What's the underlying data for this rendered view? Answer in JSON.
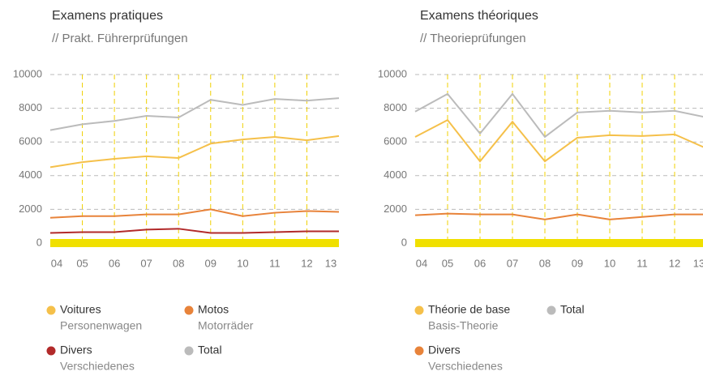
{
  "chart_data": [
    {
      "type": "line",
      "title": "Examens pratiques",
      "subtitle": "// Prakt. Führerprüfungen",
      "categories": [
        "04",
        "05",
        "06",
        "07",
        "08",
        "09",
        "10",
        "11",
        "12",
        "13"
      ],
      "ylim": [
        0,
        10000
      ],
      "yticks": [
        0,
        2000,
        4000,
        6000,
        8000,
        10000
      ],
      "grid": true,
      "series": [
        {
          "name": "Voitures",
          "name_de": "Personenwagen",
          "color": "#f5c04a",
          "values": [
            4500,
            4800,
            5000,
            5150,
            5050,
            5900,
            6150,
            6300,
            6100,
            6350
          ]
        },
        {
          "name": "Motos",
          "name_de": "Motorräder",
          "color": "#e8833a",
          "values": [
            1500,
            1600,
            1600,
            1700,
            1700,
            2000,
            1600,
            1800,
            1900,
            1850
          ]
        },
        {
          "name": "Divers",
          "name_de": "Verschiedenes",
          "color": "#b22a2a",
          "values": [
            600,
            650,
            650,
            800,
            850,
            600,
            600,
            650,
            700,
            700
          ]
        },
        {
          "name": "Total",
          "color": "#bbbbbb",
          "values": [
            6700,
            7050,
            7250,
            7550,
            7450,
            8500,
            8200,
            8550,
            8450,
            8600
          ]
        }
      ]
    },
    {
      "type": "line",
      "title": "Examens théoriques",
      "subtitle": "// Theorieprüfungen",
      "categories": [
        "04",
        "05",
        "06",
        "07",
        "08",
        "09",
        "10",
        "11",
        "12",
        "13"
      ],
      "ylim": [
        0,
        10000
      ],
      "yticks": [
        0,
        2000,
        4000,
        6000,
        8000,
        10000
      ],
      "grid": true,
      "series": [
        {
          "name": "Théorie de base",
          "name_de": "Basis-Theorie",
          "color": "#f5c04a",
          "values": [
            6300,
            7300,
            4850,
            7200,
            4850,
            6250,
            6400,
            6350,
            6450,
            5600
          ]
        },
        {
          "name": "Total",
          "color": "#bbbbbb",
          "values": [
            7800,
            8850,
            6500,
            8850,
            6300,
            7750,
            7850,
            7750,
            7850,
            7450
          ]
        },
        {
          "name": "Divers",
          "name_de": "Verschiedenes",
          "color": "#e8833a",
          "values": [
            1650,
            1750,
            1700,
            1700,
            1400,
            1700,
            1400,
            1550,
            1700,
            1700
          ]
        }
      ]
    }
  ]
}
